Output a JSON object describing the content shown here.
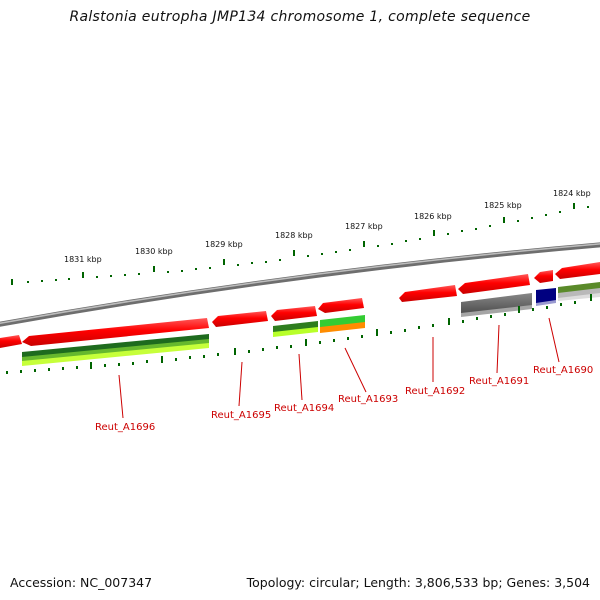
{
  "title": "Ralstonia eutropha JMP134 chromosome 1, complete sequence",
  "accession_text": "Accession: NC_007347",
  "summary_text": "Topology: circular; Length: 3,806,533 bp; Genes: 3,504",
  "colors": {
    "backbone": "#8a8a8a",
    "cds_forward": "#ff0000",
    "tick": "#006400",
    "label": "#cc0000",
    "blue_feature": "#000080",
    "grey_feature": "#666666"
  },
  "kbp_ticks": [
    {
      "kbp": 1831,
      "label": "1831 kbp"
    },
    {
      "kbp": 1830,
      "label": "1830 kbp"
    },
    {
      "kbp": 1829,
      "label": "1829 kbp"
    },
    {
      "kbp": 1828,
      "label": "1828 kbp"
    },
    {
      "kbp": 1827,
      "label": "1827 kbp"
    },
    {
      "kbp": 1826,
      "label": "1826 kbp"
    },
    {
      "kbp": 1825,
      "label": "1825 kbp"
    },
    {
      "kbp": 1824,
      "label": "1824 kbp"
    }
  ],
  "gene_labels": [
    {
      "name": "Reut_A1696"
    },
    {
      "name": "Reut_A1695"
    },
    {
      "name": "Reut_A1694"
    },
    {
      "name": "Reut_A1693"
    },
    {
      "name": "Reut_A1692"
    },
    {
      "name": "Reut_A1691"
    },
    {
      "name": "Reut_A1690"
    }
  ]
}
